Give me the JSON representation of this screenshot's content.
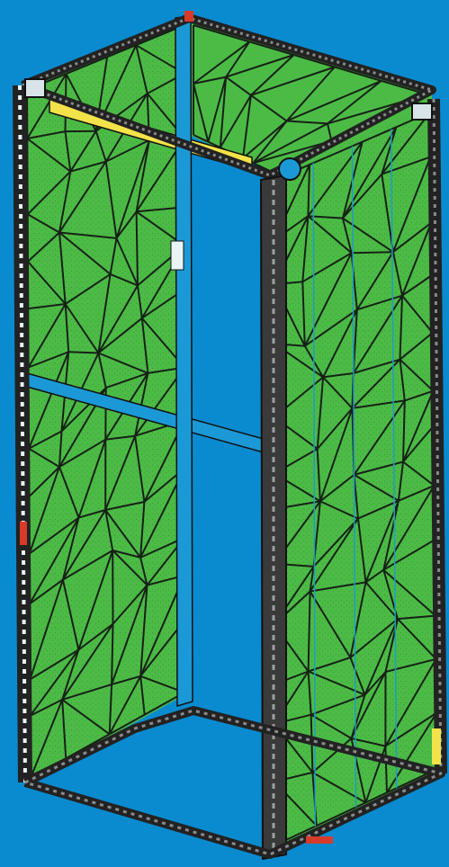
{
  "scene": {
    "background_color": "#0a8bd0",
    "model": {
      "kind": "rack-enclosure-frame",
      "display_style": "finite-element-mesh",
      "mesh_color": "#4cbb46",
      "edge_color": "#111111",
      "frame_color": "#3a3a3a",
      "beam_color": "#1b99d6",
      "highlight_beam_color": "#f2e34a"
    },
    "icons": {
      "frame": "rack-frame-icon",
      "mesh": "mesh-panel-icon"
    }
  }
}
